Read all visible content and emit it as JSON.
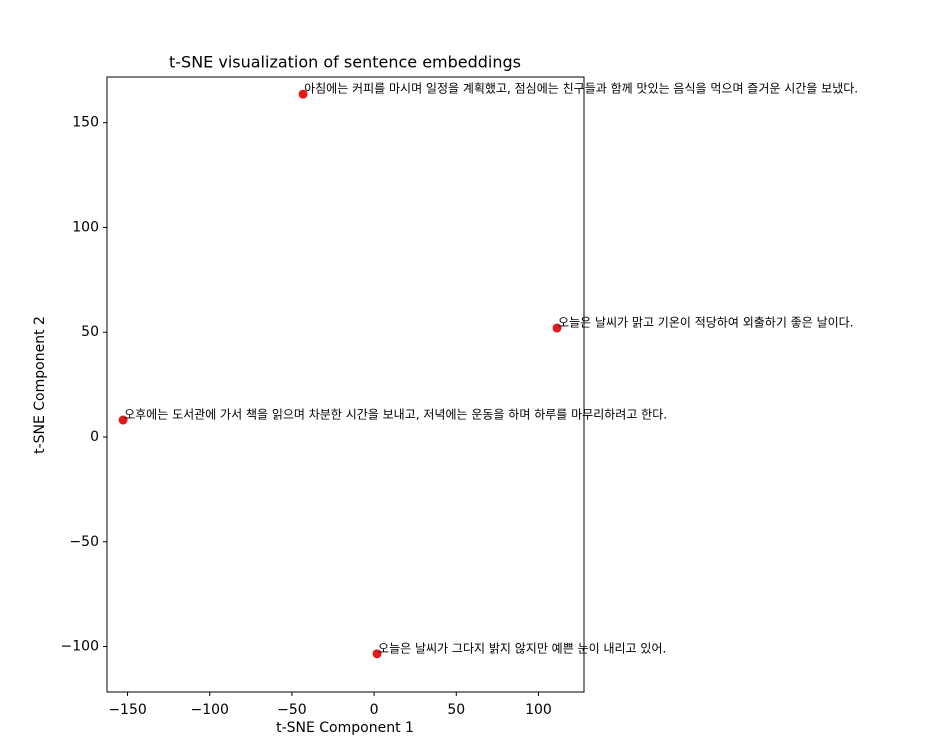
{
  "chart_data": {
    "type": "scatter",
    "title": "t-SNE visualization of sentence embeddings",
    "x_label": "t-SNE Component 1",
    "y_label": "t-SNE Component 2",
    "x": [
      -43.2,
      111.3,
      -152.7,
      1.8
    ],
    "values": [
      163.6,
      52.0,
      8.1,
      -103.5
    ],
    "labels": [
      "아침에는 커피를 마시며 일정을 계획했고, 점심에는 친구들과 함께 맛있는 음식을 먹으며 즐거운 시간을 보냈다.",
      "오늘은 날씨가 맑고 기온이 적당하여 외출하기 좋은 날이다.",
      "오후에는 도서관에 가서 책을 읽으며 차분한 시간을 보내고, 저녁에는 운동을 하며 하루를 마무리하려고 한다.",
      "오늘은 날씨가 그다지 밝지 않지만 예쁜 눈이 내리고 있어."
    ],
    "color": "#e31a1c",
    "xlim": [
      -162.5,
      127.7
    ],
    "ylim": [
      -121.7,
      171.8
    ],
    "xticks": [
      {
        "value": -150,
        "label": "−150"
      },
      {
        "value": -100,
        "label": "−100"
      },
      {
        "value": -50,
        "label": "−50"
      },
      0,
      50,
      100
    ],
    "yticks": [
      {
        "value": -100,
        "label": "−100"
      },
      {
        "value": -50,
        "label": "−50"
      },
      0,
      50,
      100,
      150
    ],
    "grid": false
  }
}
